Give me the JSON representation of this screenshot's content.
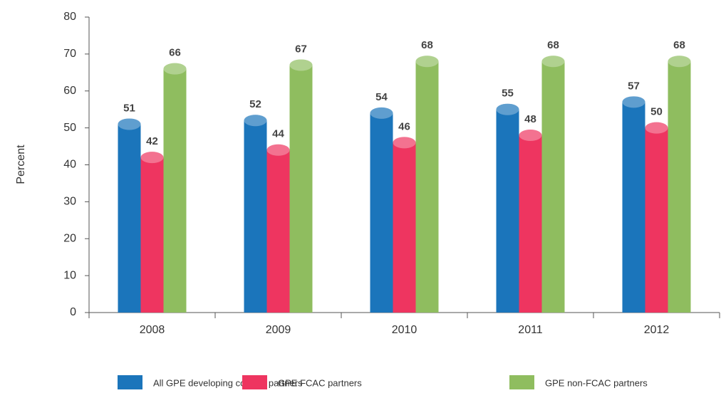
{
  "chart_data": {
    "type": "bar",
    "y_label": "Percent",
    "categories": [
      "2008",
      "2009",
      "2010",
      "2011",
      "2012"
    ],
    "series": [
      {
        "name": "All GPE developing country partners",
        "color": "#1b75bb",
        "values": [
          51,
          52,
          54,
          55,
          57
        ]
      },
      {
        "name": "GPE FCAC partners",
        "color": "#ee3560",
        "values": [
          42,
          44,
          46,
          48,
          50
        ]
      },
      {
        "name": "GPE non-FCAC partners",
        "color": "#8fbd5f",
        "values": [
          66,
          67,
          68,
          68,
          68
        ]
      }
    ],
    "ylim": [
      0,
      80
    ],
    "yticks": [
      0,
      10,
      20,
      30,
      40,
      50,
      60,
      70,
      80
    ],
    "legend": "bottom"
  }
}
